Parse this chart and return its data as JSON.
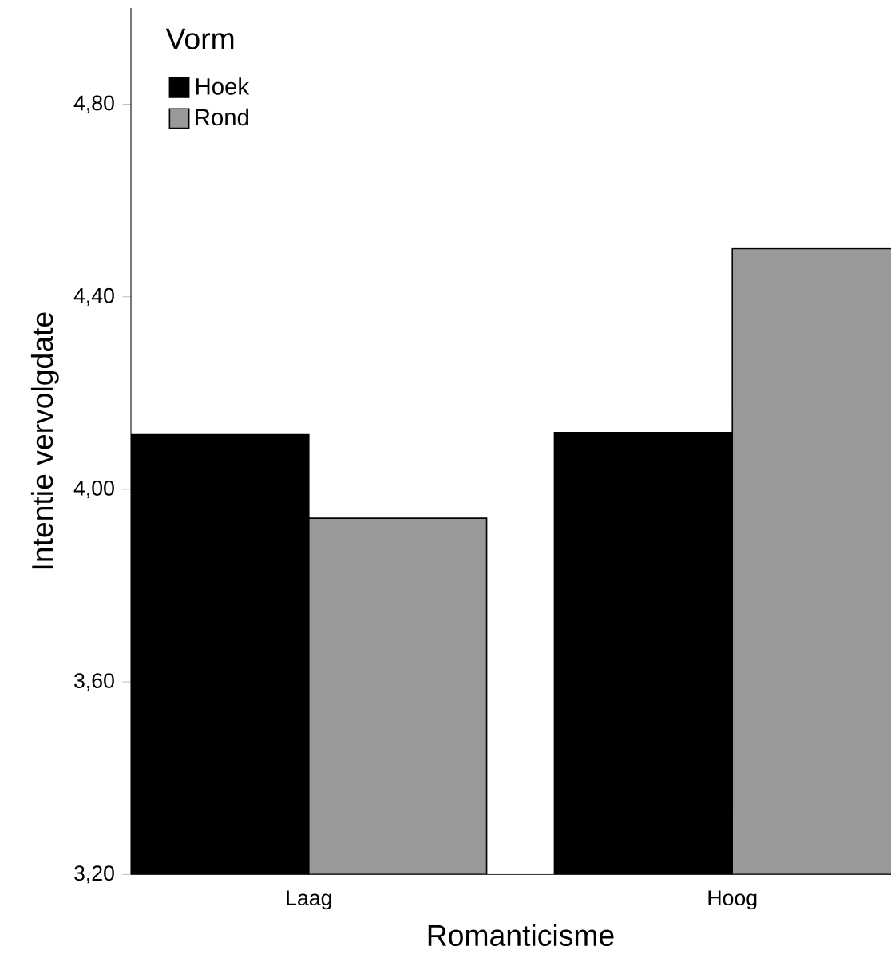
{
  "chart_data": {
    "type": "bar",
    "xlabel": "Romanticisme",
    "ylabel": "Intentie vervolgdate",
    "categories": [
      "Laag",
      "Hoog"
    ],
    "series": [
      {
        "name": "Hoek",
        "color": "#000000",
        "values": [
          4.115,
          4.118
        ]
      },
      {
        "name": "Rond",
        "color": "#999999",
        "values": [
          3.94,
          4.5
        ]
      }
    ],
    "legend_title": "Vorm",
    "legend": "top left",
    "ylim": [
      3.2,
      5.0
    ],
    "yticks": [
      {
        "value": 3.2,
        "label": "3,20"
      },
      {
        "value": 3.6,
        "label": "3,60"
      },
      {
        "value": 4.0,
        "label": "4,00"
      },
      {
        "value": 4.4,
        "label": "4,40"
      },
      {
        "value": 4.8,
        "label": "4,80"
      }
    ]
  }
}
